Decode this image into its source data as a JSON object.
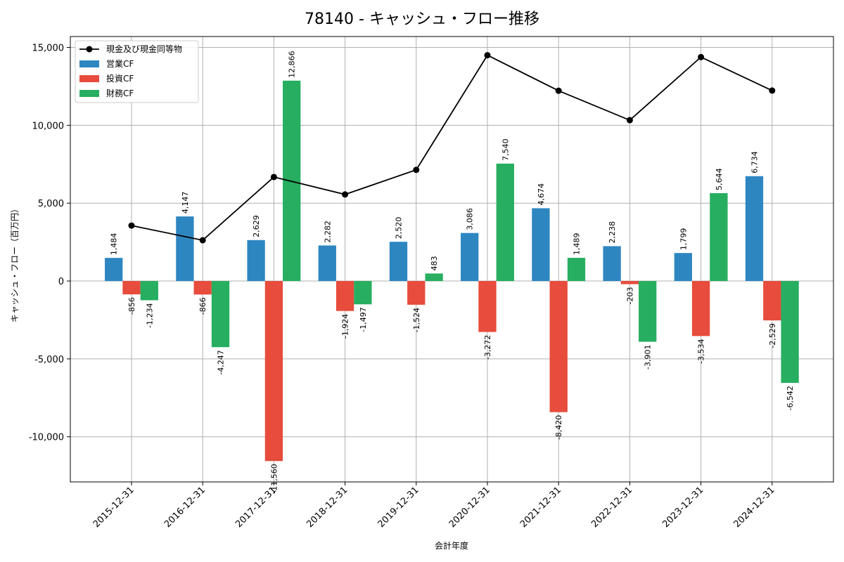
{
  "chart_data": {
    "type": "bar",
    "title": "78140 - キャッシュ・フロー推移",
    "xlabel": "会計年度",
    "ylabel": "キャッシュ・フロー（百万円）",
    "categories": [
      "2015-12-31",
      "2016-12-31",
      "2017-12-31",
      "2018-12-31",
      "2019-12-31",
      "2020-12-31",
      "2021-12-31",
      "2022-12-31",
      "2023-12-31",
      "2024-12-31"
    ],
    "series": [
      {
        "name": "営業CF",
        "type": "bar",
        "color": "#2e86c1",
        "values": [
          1484,
          4147,
          2629,
          2282,
          2520,
          3086,
          4674,
          2238,
          1799,
          6734
        ],
        "labels": [
          "1,484",
          "4,147",
          "2,629",
          "2,282",
          "2,520",
          "3,086",
          "4,674",
          "2,238",
          "1,799",
          "6,734"
        ]
      },
      {
        "name": "投資CF",
        "type": "bar",
        "color": "#e74c3c",
        "values": [
          -856,
          -866,
          -11560,
          -1924,
          -1524,
          -3272,
          -8420,
          -203,
          -3534,
          -2529
        ],
        "labels": [
          "-856",
          "-866",
          "-11,560",
          "-1,924",
          "-1,524",
          "-3,272",
          "-8,420",
          "-203",
          "-3,534",
          "-2,529"
        ]
      },
      {
        "name": "財務CF",
        "type": "bar",
        "color": "#27ae60",
        "values": [
          -1234,
          -4247,
          12866,
          -1497,
          483,
          7540,
          1489,
          -3901,
          5644,
          -6542
        ],
        "labels": [
          "-1,234",
          "-4,247",
          "12,866",
          "-1,497",
          "483",
          "7,540",
          "1,489",
          "-3,901",
          "5,644",
          "-6,542"
        ]
      },
      {
        "name": "現金及び現金同等物",
        "type": "line",
        "color": "#000000",
        "values": [
          3560,
          2620,
          6680,
          5560,
          7140,
          14500,
          12220,
          10330,
          14380,
          12230
        ]
      }
    ],
    "ylim": [
      -12900,
      15700
    ],
    "yticks": [
      -10000,
      -5000,
      0,
      5000,
      10000,
      15000
    ],
    "ytick_labels": [
      "-10,000",
      "-5,000",
      "0",
      "5,000",
      "10,000",
      "15,000"
    ],
    "grid": true,
    "legend_position": "top-left"
  }
}
